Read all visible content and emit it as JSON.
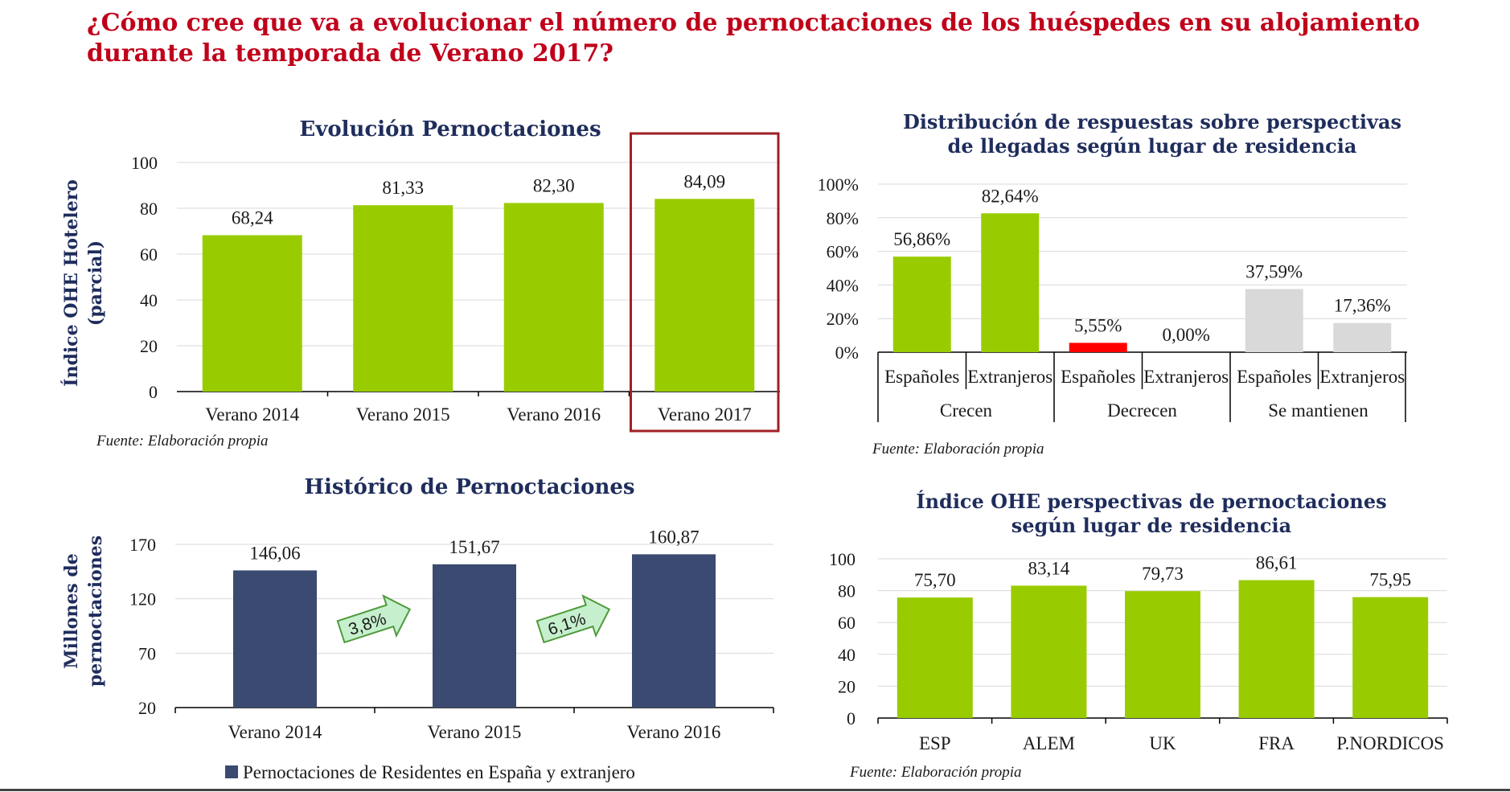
{
  "title": {
    "line1": "¿Cómo cree que va a evolucionar el número de pernoctaciones de los huéspedes en su alojamiento",
    "line2": "durante la temporada de Verano 2017?"
  },
  "colors": {
    "green": "#99cc00",
    "red": "#ff0000",
    "grey": "#d9d9d9",
    "navy": "#3a4a70",
    "highlight_box": "#a01f24",
    "arrow_fill": "#c6efce",
    "arrow_stroke": "#4e9a3a"
  },
  "source_text": "Fuente: Elaboración propia",
  "chart_data": [
    {
      "id": "evolucion",
      "type": "bar",
      "title": "Evolución Pernoctaciones",
      "ylabel": [
        "Índice OHE Hotelero",
        "(parcial)"
      ],
      "categories": [
        "Verano 2014",
        "Verano 2015",
        "Verano 2016",
        "Verano 2017"
      ],
      "values": [
        68.24,
        81.33,
        82.3,
        84.09
      ],
      "value_labels": [
        "68,24",
        "81,33",
        "82,30",
        "84,09"
      ],
      "yticks": [
        "0",
        "20",
        "40",
        "60",
        "80",
        "100"
      ],
      "ylim": [
        0,
        100
      ],
      "highlight": "Verano 2017",
      "grid": true,
      "source": "Fuente: Elaboración propia"
    },
    {
      "id": "distribucion",
      "type": "bar",
      "title": [
        "Distribución de respuestas sobre perspectivas",
        "de llegadas según lugar de residencia"
      ],
      "groups": [
        {
          "name": "Crecen",
          "categories": [
            "Españoles",
            "Extranjeros"
          ],
          "values": [
            56.86,
            82.64
          ],
          "value_labels": [
            "56,86%",
            "82,64%"
          ],
          "color": "green"
        },
        {
          "name": "Decrecen",
          "categories": [
            "Españoles",
            "Extranjeros"
          ],
          "values": [
            5.55,
            0.0
          ],
          "value_labels": [
            "5,55%",
            "0,00%"
          ],
          "color": "red"
        },
        {
          "name": "Se mantienen",
          "categories": [
            "Españoles",
            "Extranjeros"
          ],
          "values": [
            37.59,
            17.36
          ],
          "value_labels": [
            "37,59%",
            "17,36%"
          ],
          "color": "grey"
        }
      ],
      "yticks": [
        "0%",
        "20%",
        "40%",
        "60%",
        "80%",
        "100%"
      ],
      "ylim": [
        0,
        100
      ],
      "grid": true,
      "source": "Fuente: Elaboración propia"
    },
    {
      "id": "historico",
      "type": "bar",
      "title": "Histórico de Pernoctaciones",
      "ylabel": [
        "Millones de",
        "pernoctaciones"
      ],
      "categories": [
        "Verano 2014",
        "Verano 2015",
        "Verano 2016"
      ],
      "series": [
        {
          "name": "Pernoctaciones de Residentes en España y extranjero",
          "values": [
            146.06,
            151.67,
            160.87
          ],
          "value_labels": [
            "146,06",
            "151,67",
            "160,87"
          ]
        }
      ],
      "growth_labels": [
        "3,8%",
        "6,1%"
      ],
      "yticks": [
        "20",
        "70",
        "120",
        "170"
      ],
      "ylim": [
        20,
        170
      ],
      "grid": true,
      "legend": "bottom"
    },
    {
      "id": "indice_residencia",
      "type": "bar",
      "title": [
        "Índice OHE perspectivas de pernoctaciones",
        "según lugar de residencia"
      ],
      "categories": [
        "ESP",
        "ALEM",
        "UK",
        "FRA",
        "P.NORDICOS"
      ],
      "values": [
        75.7,
        83.14,
        79.73,
        86.61,
        75.95
      ],
      "value_labels": [
        "75,70",
        "83,14",
        "79,73",
        "86,61",
        "75,95"
      ],
      "yticks": [
        "0",
        "20",
        "40",
        "60",
        "80",
        "100"
      ],
      "ylim": [
        0,
        100
      ],
      "grid": true,
      "source": "Fuente: Elaboración propia"
    }
  ]
}
